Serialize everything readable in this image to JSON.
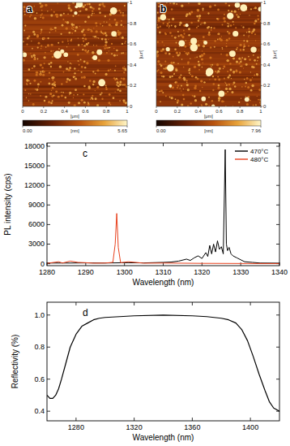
{
  "chart_data": [
    {
      "type": "image",
      "title": "a",
      "xlim": [
        0,
        1
      ],
      "xticks": [
        0,
        0.2,
        0.4,
        0.6,
        0.8,
        1
      ],
      "ylim": [
        0,
        1
      ],
      "yticks": [
        0,
        0.2,
        0.4,
        0.6,
        0.8,
        1
      ],
      "x_label": "[μm]",
      "y_label": "[μm]",
      "colorbar": {
        "range": [
          0,
          5.65
        ],
        "ticks": [
          {
            "value": 0,
            "label": "0.00"
          },
          {
            "value": 5.65,
            "label": "5.65"
          }
        ],
        "label": "[nm]"
      }
    },
    {
      "type": "image",
      "title": "b",
      "xlim": [
        0,
        1
      ],
      "xticks": [
        0,
        0.2,
        0.4,
        0.6,
        0.8,
        1
      ],
      "ylim": [
        0,
        1
      ],
      "yticks": [
        0,
        0.2,
        0.4,
        0.6,
        0.8,
        1
      ],
      "x_label": "[μm]",
      "y_label": "[μm]",
      "colorbar": {
        "range": [
          0,
          7.96
        ],
        "ticks": [
          {
            "value": 0,
            "label": "0.00"
          },
          {
            "value": 7.96,
            "label": "7.96"
          }
        ],
        "label": "[nm]"
      }
    },
    {
      "type": "line",
      "title": "c",
      "x_label": "Wavelength (nm)",
      "y_label": "PL intensity (cps)",
      "xlim": [
        1280,
        1340
      ],
      "xticks": [
        1280,
        1290,
        1300,
        1310,
        1320,
        1330,
        1340
      ],
      "ylim": [
        -300,
        18500
      ],
      "yticks": [
        0,
        3000,
        6000,
        9000,
        12000,
        15000,
        18000
      ],
      "legend": "top-right",
      "series": [
        {
          "name": "470°C",
          "color": "#000000",
          "x": [
            1280,
            1285,
            1290,
            1295,
            1300,
            1305,
            1310,
            1312,
            1314,
            1316,
            1317,
            1318,
            1319,
            1320,
            1321,
            1321.5,
            1322,
            1322.5,
            1323,
            1323.5,
            1324,
            1324.5,
            1325,
            1325.5,
            1326,
            1326.3,
            1326.6,
            1327,
            1327.5,
            1328,
            1329,
            1330,
            1331,
            1333,
            1335,
            1340
          ],
          "values": [
            100,
            100,
            120,
            100,
            150,
            120,
            200,
            250,
            400,
            700,
            500,
            900,
            1200,
            800,
            1700,
            1100,
            2800,
            1500,
            3000,
            1800,
            3500,
            2200,
            2600,
            1500,
            17500,
            3000,
            2000,
            2500,
            1500,
            1200,
            900,
            600,
            300,
            200,
            100,
            80
          ]
        },
        {
          "name": "480°C",
          "color": "#e8401c",
          "x": [
            1280,
            1283,
            1284,
            1286,
            1288,
            1290,
            1292,
            1295,
            1297,
            1297.6,
            1298,
            1298.4,
            1299,
            1301,
            1305,
            1310,
            1320,
            1330,
            1340
          ],
          "values": [
            50,
            300,
            100,
            400,
            200,
            150,
            80,
            100,
            200,
            3000,
            7700,
            2500,
            150,
            300,
            80,
            100,
            50,
            30,
            20
          ]
        }
      ]
    },
    {
      "type": "line",
      "title": "d",
      "x_label": "Wavelength (nm)",
      "y_label": "Reflectivity (%)",
      "xlim": [
        1260,
        1420
      ],
      "xticks": [
        1280,
        1320,
        1360,
        1400
      ],
      "ylim": [
        0.34,
        1.08
      ],
      "yticks": [
        {
          "value": 0.4,
          "label": "0.4"
        },
        {
          "value": 0.6,
          "label": "0.6"
        },
        {
          "value": 0.8,
          "label": "0.8"
        },
        {
          "value": 1,
          "label": "1.0"
        }
      ],
      "series": [
        {
          "color": "#000000",
          "x": [
            1260,
            1262,
            1264,
            1266,
            1268,
            1270,
            1273,
            1276,
            1280,
            1284,
            1288,
            1292,
            1296,
            1300,
            1310,
            1320,
            1340,
            1360,
            1370,
            1380,
            1385,
            1390,
            1394,
            1398,
            1402,
            1406,
            1410,
            1413,
            1416,
            1420
          ],
          "values": [
            0.5,
            0.48,
            0.48,
            0.5,
            0.54,
            0.6,
            0.7,
            0.8,
            0.88,
            0.93,
            0.95,
            0.97,
            0.98,
            0.985,
            0.99,
            0.995,
            1,
            0.995,
            0.99,
            0.98,
            0.97,
            0.95,
            0.91,
            0.84,
            0.74,
            0.63,
            0.53,
            0.46,
            0.42,
            0.4
          ]
        }
      ]
    }
  ]
}
